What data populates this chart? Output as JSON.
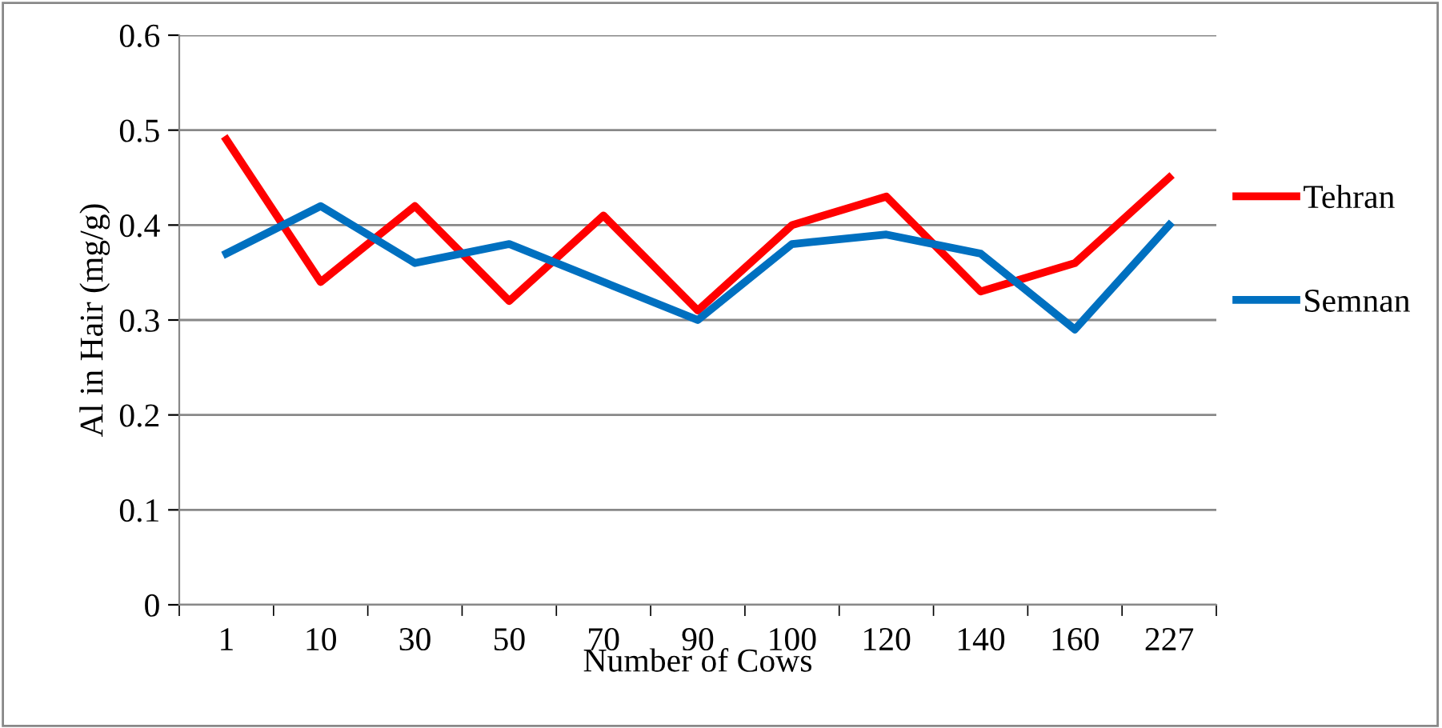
{
  "chart_data": {
    "type": "line",
    "xlabel": "Number of Cows",
    "ylabel": "Al in Hair (mg/g)",
    "categories": [
      "1",
      "10",
      "30",
      "50",
      "70",
      "90",
      "100",
      "120",
      "140",
      "160",
      "227"
    ],
    "series": [
      {
        "name": "Tehran",
        "color": "#ff0000",
        "values": [
          0.49,
          0.34,
          0.42,
          0.32,
          0.41,
          0.31,
          0.4,
          0.43,
          0.33,
          0.36,
          0.45
        ]
      },
      {
        "name": "Semnan",
        "color": "#0070c0",
        "values": [
          0.37,
          0.42,
          0.36,
          0.38,
          0.34,
          0.3,
          0.38,
          0.39,
          0.37,
          0.29,
          0.4
        ]
      }
    ],
    "ylim": [
      0,
      0.6
    ],
    "yticks": [
      0,
      0.1,
      0.2,
      0.3,
      0.4,
      0.5,
      0.6
    ],
    "grid": "y",
    "legend": "right",
    "marker": "none",
    "line_style": "solid"
  }
}
